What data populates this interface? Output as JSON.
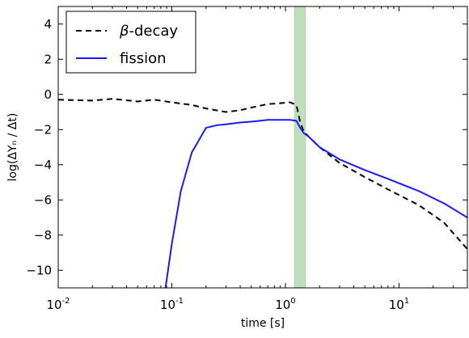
{
  "chart_data": {
    "type": "line",
    "xlabel": "time  [s]",
    "ylabel": "log(ΔYₙ / Δt)",
    "xscale": "log",
    "xlim": [
      0.01,
      40
    ],
    "ylim": [
      -11,
      5
    ],
    "xticks": [
      0.01,
      0.1,
      1,
      10
    ],
    "xtick_labels": [
      {
        "base": "10",
        "exp": "-2"
      },
      {
        "base": "10",
        "exp": "-1"
      },
      {
        "base": "10",
        "exp": "0"
      },
      {
        "base": "10",
        "exp": "1"
      }
    ],
    "yticks": [
      4,
      2,
      0,
      -2,
      -4,
      -6,
      -8,
      -10
    ],
    "ytick_labels": [
      "4",
      "2",
      "0",
      "−2",
      "−4",
      "−6",
      "−8",
      "−10"
    ],
    "grid": false,
    "legend_position": "top-left",
    "shaded_region": {
      "x": [
        1.2,
        1.5
      ],
      "color": "#b5d9b0"
    },
    "series": [
      {
        "name_prefix": "β",
        "name_suffix": "-decay",
        "name": "β-decay",
        "color": "#000000",
        "style": "dashed",
        "x": [
          0.01,
          0.02,
          0.03,
          0.05,
          0.07,
          0.1,
          0.15,
          0.2,
          0.3,
          0.4,
          0.5,
          0.7,
          0.9,
          1.1,
          1.25,
          1.35,
          1.45,
          1.6,
          2.0,
          3.0,
          5.0,
          8.0,
          15.0,
          25.0,
          40.0
        ],
        "y": [
          -0.3,
          -0.35,
          -0.25,
          -0.4,
          -0.3,
          -0.45,
          -0.6,
          -0.8,
          -1.0,
          -0.9,
          -0.75,
          -0.55,
          -0.5,
          -0.45,
          -0.6,
          -1.6,
          -2.1,
          -2.4,
          -3.0,
          -3.9,
          -4.7,
          -5.4,
          -6.3,
          -7.3,
          -8.8
        ]
      },
      {
        "name": "fission",
        "color": "#1a1aff",
        "style": "solid",
        "x": [
          0.088,
          0.1,
          0.12,
          0.15,
          0.2,
          0.25,
          0.3,
          0.4,
          0.5,
          0.7,
          0.9,
          1.1,
          1.25,
          1.35,
          1.45,
          1.6,
          2.0,
          3.0,
          5.0,
          8.0,
          15.0,
          25.0,
          40.0
        ],
        "y": [
          -11,
          -8.5,
          -5.5,
          -3.3,
          -1.9,
          -1.75,
          -1.7,
          -1.6,
          -1.55,
          -1.45,
          -1.45,
          -1.45,
          -1.5,
          -1.9,
          -2.2,
          -2.4,
          -3.0,
          -3.7,
          -4.3,
          -4.8,
          -5.5,
          -6.2,
          -7.0
        ]
      }
    ]
  }
}
